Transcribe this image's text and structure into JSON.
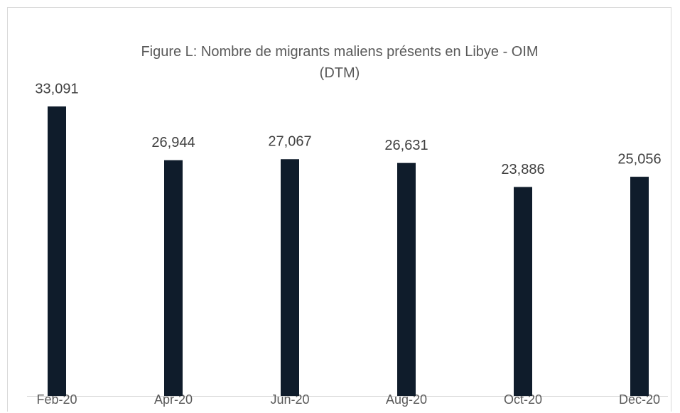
{
  "chart_data": {
    "type": "bar",
    "title": "Figure L: Nombre de migrants maliens présents en Libye - OIM (DTM)",
    "categories": [
      "Feb-20",
      "Apr-20",
      "Jun-20",
      "Aug-20",
      "Oct-20",
      "Dec-20"
    ],
    "values": [
      33091,
      26944,
      27067,
      26631,
      23886,
      25056
    ],
    "value_labels": [
      "33,091",
      "26,944",
      "27,067",
      "26,631",
      "23,886",
      "25,056"
    ],
    "color": "#0f1c2b"
  }
}
